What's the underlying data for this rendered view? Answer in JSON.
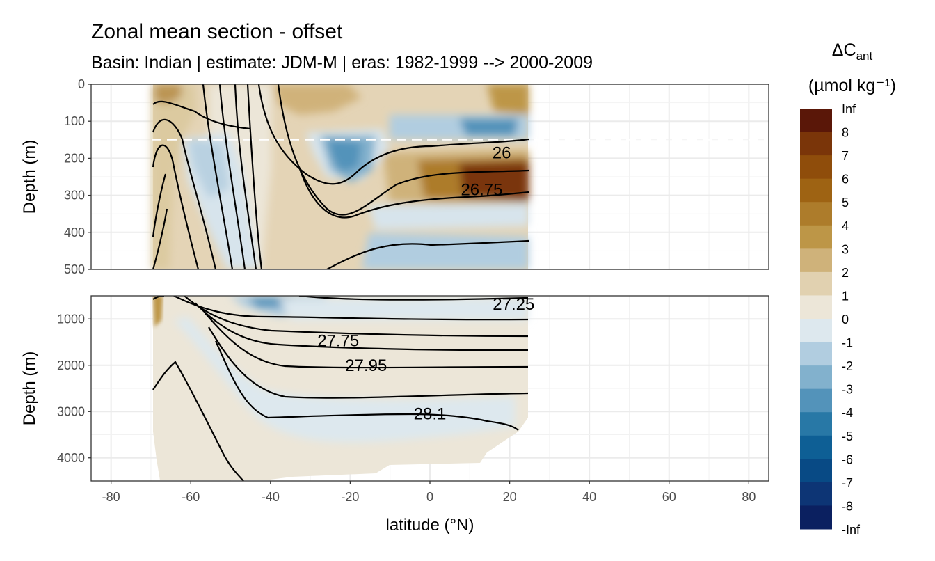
{
  "chart_data": {
    "type": "heatmap",
    "title": "Zonal mean section - offset",
    "subtitle": "Basin: Indian | estimate: JDM-M | eras: 1982-1999 --> 2000-2009",
    "xlabel": "latitude (°N)",
    "ylabel": "Depth (m)",
    "xlim": [
      -85,
      85
    ],
    "x_ticks": [
      "-80",
      "-60",
      "-40",
      "-20",
      "0",
      "20",
      "40",
      "60",
      "80"
    ],
    "grid": true,
    "data_lat_range": [
      -69.5,
      24.5
    ],
    "panels": [
      {
        "name": "upper",
        "ylim": [
          500,
          0
        ],
        "y_ticks": [
          "0",
          "100",
          "200",
          "300",
          "400",
          "500"
        ],
        "mixed_layer_line_depth": 150,
        "contour_labels": [
          {
            "text": "26",
            "lat": 18,
            "depth": 185
          },
          {
            "text": "26.75",
            "lat": 13,
            "depth": 285
          }
        ]
      },
      {
        "name": "lower",
        "ylim": [
          4500,
          500
        ],
        "y_ticks": [
          "1000",
          "2000",
          "3000",
          "4000"
        ],
        "contour_labels": [
          {
            "text": "27.25",
            "lat": 21,
            "depth": 680
          },
          {
            "text": "27.75",
            "lat": -23,
            "depth": 1470
          },
          {
            "text": "27.95",
            "lat": -16,
            "depth": 2000
          },
          {
            "text": "28.1",
            "lat": 0,
            "depth": 3050
          }
        ]
      }
    ],
    "legend": {
      "title_main": "ΔC",
      "title_sub": "ant",
      "unit_line": "(µmol kg⁻¹)",
      "placement": "right",
      "labels": [
        "Inf",
        "8",
        "7",
        "6",
        "5",
        "4",
        "3",
        "2",
        "1",
        "0",
        "-1",
        "-2",
        "-3",
        "-4",
        "-5",
        "-6",
        "-7",
        "-8",
        "-Inf"
      ],
      "colors": [
        "#5a1708",
        "#7a3509",
        "#8f4d0b",
        "#9e6313",
        "#ad7c2b",
        "#bd9647",
        "#cfb27a",
        "#e1d1b0",
        "#ece6d8",
        "#dde8ee",
        "#b1cde0",
        "#82b1cd",
        "#5393ba",
        "#2878a6",
        "#0e5f95",
        "#084a85",
        "#0d3575",
        "#0b2060"
      ]
    }
  }
}
